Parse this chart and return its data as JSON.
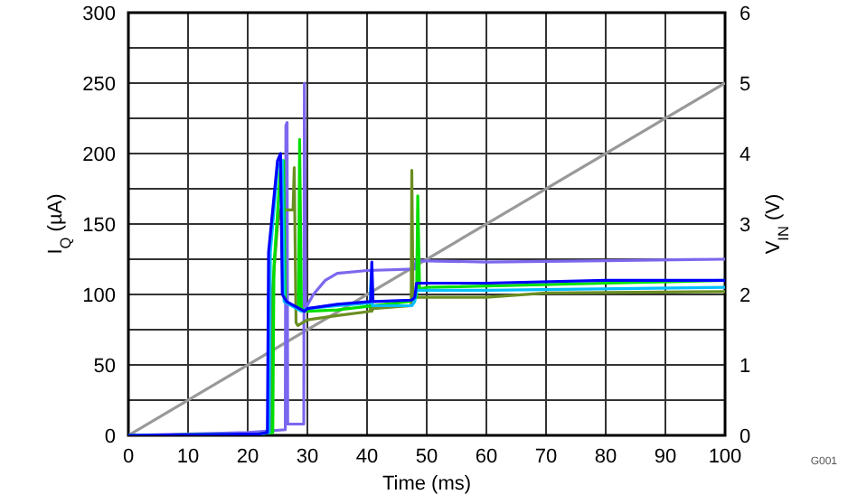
{
  "chart_data": {
    "type": "line",
    "xlabel": "Time (ms)",
    "ylabel": "I$_{Q}$ (µA)",
    "y2label": "V$_{IN}$ (V)",
    "annotations": [
      "G001"
    ],
    "xlim": [
      0,
      100
    ],
    "xticks": [
      0,
      10,
      20,
      30,
      40,
      50,
      60,
      70,
      80,
      90,
      100
    ],
    "ylim": [
      0,
      300
    ],
    "yticks": [
      0,
      {
        "value": 25,
        "label": null
      },
      50,
      {
        "value": 75,
        "label": null
      },
      100,
      {
        "value": 125,
        "label": null
      },
      150,
      {
        "value": 175,
        "label": null
      },
      200,
      {
        "value": 225,
        "label": null
      },
      250,
      {
        "value": 275,
        "label": null
      },
      300
    ],
    "y2lim": [
      0,
      6
    ],
    "y2ticks": [
      0,
      1,
      2,
      3,
      4,
      5,
      6
    ],
    "grid": true,
    "line_style": "solid",
    "marker": "none",
    "series": [
      {
        "color": "#999999",
        "axis": "y2",
        "x": [
          0,
          100
        ],
        "values": [
          0,
          5
        ]
      },
      {
        "color": "#7b68ee",
        "x": [
          0,
          20,
          26.3,
          26.4,
          26.6,
          26.7,
          29.4,
          29.5,
          29.7,
          31,
          33,
          35,
          40,
          48,
          48.2,
          60,
          80,
          100
        ],
        "values": [
          0,
          2,
          4,
          220,
          222,
          8,
          8,
          250,
          90,
          100,
          110,
          115,
          117,
          118,
          124,
          123,
          124,
          125
        ]
      },
      {
        "color": "#6b8e23",
        "x": [
          0,
          22,
          23.9,
          24.1,
          25,
          25.5,
          27.6,
          27.8,
          28.1,
          28.4,
          30,
          35,
          40.5,
          40.6,
          40.8,
          41,
          47.4,
          47.5,
          47.7,
          47.9,
          60,
          70,
          100
        ],
        "values": [
          0,
          1,
          2,
          100,
          150,
          160,
          160,
          190,
          80,
          78,
          82,
          85,
          88,
          100,
          88,
          90,
          92,
          188,
          100,
          98,
          98,
          101,
          102
        ]
      },
      {
        "color": "#00e000",
        "x": [
          0,
          22,
          24.2,
          24.4,
          25.5,
          26,
          26.3,
          28.5,
          28.7,
          29,
          30,
          35,
          47,
          48.3,
          48.5,
          48.8,
          50,
          80,
          100
        ],
        "values": [
          0,
          1,
          2,
          120,
          190,
          195,
          95,
          90,
          210,
          90,
          88,
          89,
          95,
          98,
          170,
          104,
          105,
          108,
          110
        ]
      },
      {
        "color": "#00bfff",
        "x": [
          0,
          22,
          23.6,
          23.8,
          25,
          25.8,
          26.1,
          29,
          30,
          35,
          40.5,
          40.7,
          40.9,
          47.5,
          48,
          48.3,
          60,
          100
        ],
        "values": [
          0,
          1,
          2,
          130,
          190,
          195,
          95,
          88,
          90,
          92,
          94,
          115,
          92,
          92,
          95,
          103,
          103,
          105
        ]
      },
      {
        "color": "#0000ff",
        "x": [
          0,
          22,
          23.3,
          23.5,
          25,
          25.5,
          25.8,
          26.5,
          29.5,
          30,
          35,
          40.6,
          40.8,
          41,
          47.5,
          48,
          48.3,
          60,
          80,
          100
        ],
        "values": [
          0,
          1,
          2,
          130,
          195,
          200,
          100,
          95,
          88,
          90,
          93,
          95,
          123,
          95,
          96,
          98,
          108,
          108,
          110,
          110
        ]
      }
    ]
  }
}
